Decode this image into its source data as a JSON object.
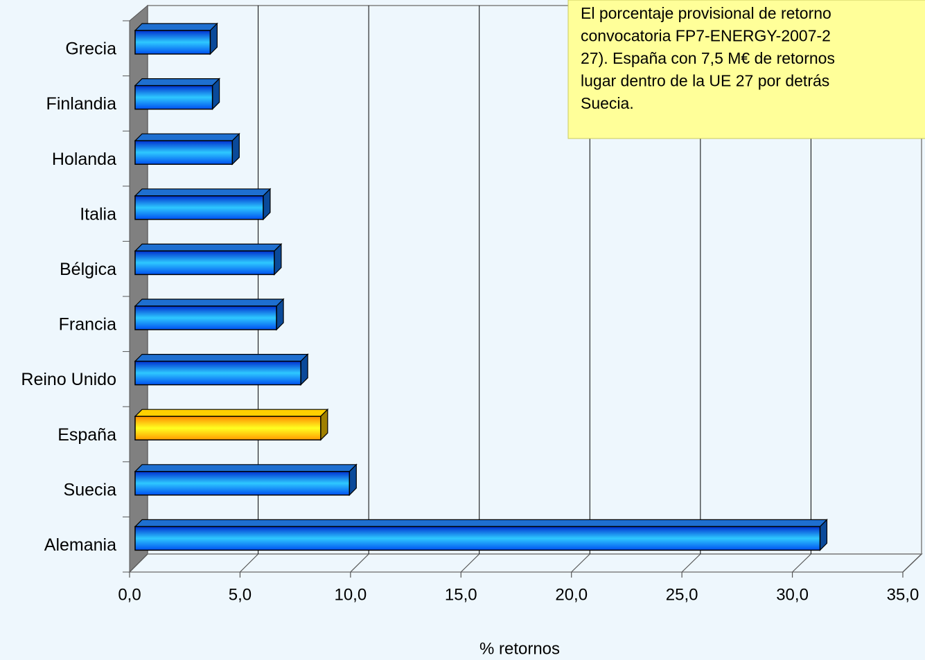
{
  "chart_data": {
    "type": "hbar3d",
    "categories": [
      "Grecia",
      "Finlandia",
      "Holanda",
      "Italia",
      "Bélgica",
      "Francia",
      "Reino Unido",
      "España",
      "Suecia",
      "Alemania"
    ],
    "values": [
      3.4,
      3.5,
      4.4,
      5.8,
      6.3,
      6.4,
      7.5,
      8.4,
      9.7,
      31.0
    ],
    "colors": [
      "blue",
      "blue",
      "blue",
      "blue",
      "blue",
      "blue",
      "blue",
      "yellow",
      "blue",
      "blue"
    ],
    "xlabel": "% retornos",
    "xlim": [
      0,
      35
    ],
    "xticks": [
      {
        "value": 0,
        "label": "0,0"
      },
      {
        "value": 5,
        "label": "5,0"
      },
      {
        "value": 10,
        "label": "10,0"
      },
      {
        "value": 15,
        "label": "15,0"
      },
      {
        "value": 20,
        "label": "20,0"
      },
      {
        "value": 25,
        "label": "25,0"
      },
      {
        "value": 30,
        "label": "30,0"
      },
      {
        "value": 35,
        "label": "35,0"
      }
    ],
    "grid": true,
    "annotation": [
      "El porcentaje provisional de retorno",
      "convocatoria FP7-ENERGY-2007-2",
      "27). España con 7,5 M€ de retornos",
      "lugar dentro de la UE 27 por detrás",
      "Suecia."
    ]
  }
}
